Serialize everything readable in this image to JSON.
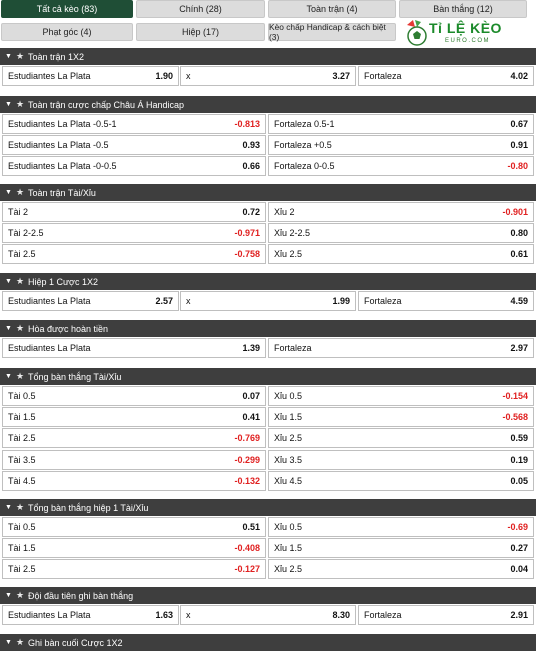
{
  "tabs": [
    {
      "label": "Tất cả kèo (83)",
      "active": true
    },
    {
      "label": "Chính (28)",
      "active": false
    },
    {
      "label": "Toàn trận (4)",
      "active": false
    },
    {
      "label": "Bàn thắng (12)",
      "active": false
    },
    {
      "label": "Phạt góc (4)",
      "active": false
    },
    {
      "label": "Hiệp (17)",
      "active": false
    },
    {
      "label": "Kèo chấp Handicap & cách biệt (3)",
      "active": false
    }
  ],
  "logo": {
    "brand": "Tỉ LỆ KÈO",
    "sub": "EURO.COM"
  },
  "colors": {
    "header_bg": "#3e3e3e",
    "active_tab": "#1f4e36",
    "negative": "#e02020"
  },
  "sections": [
    {
      "title": "Toàn trận 1X2",
      "cols": 3,
      "rows": [
        [
          {
            "label": "Estudiantes La Plata",
            "odd": "1.90"
          },
          {
            "label": "x",
            "odd": "3.27"
          },
          {
            "label": "Fortaleza",
            "odd": "4.02"
          }
        ]
      ]
    },
    {
      "title": "Toàn trận cược chấp Châu Á Handicap",
      "cols": 2,
      "rows": [
        [
          {
            "label": "Estudiantes La Plata -0.5-1",
            "odd": "-0.813"
          },
          {
            "label": "Fortaleza 0.5-1",
            "odd": "0.67"
          }
        ],
        [
          {
            "label": "Estudiantes La Plata -0.5",
            "odd": "0.93"
          },
          {
            "label": "Fortaleza +0.5",
            "odd": "0.91"
          }
        ],
        [
          {
            "label": "Estudiantes La Plata -0-0.5",
            "odd": "0.66"
          },
          {
            "label": "Fortaleza 0-0.5",
            "odd": "-0.80"
          }
        ]
      ]
    },
    {
      "title": "Toàn trận Tài/Xỉu",
      "cols": 2,
      "rows": [
        [
          {
            "label": "Tài 2",
            "odd": "0.72"
          },
          {
            "label": "Xỉu 2",
            "odd": "-0.901"
          }
        ],
        [
          {
            "label": "Tài 2-2.5",
            "odd": "-0.971"
          },
          {
            "label": "Xỉu 2-2.5",
            "odd": "0.80"
          }
        ],
        [
          {
            "label": "Tài 2.5",
            "odd": "-0.758"
          },
          {
            "label": "Xỉu 2.5",
            "odd": "0.61"
          }
        ]
      ]
    },
    {
      "title": "Hiệp 1 Cược 1X2",
      "cols": 3,
      "rows": [
        [
          {
            "label": "Estudiantes La Plata",
            "odd": "2.57"
          },
          {
            "label": "x",
            "odd": "1.99"
          },
          {
            "label": "Fortaleza",
            "odd": "4.59"
          }
        ]
      ]
    },
    {
      "title": "Hòa được hoàn tiền",
      "cols": 2,
      "rows": [
        [
          {
            "label": "Estudiantes La Plata",
            "odd": "1.39"
          },
          {
            "label": "Fortaleza",
            "odd": "2.97"
          }
        ]
      ]
    },
    {
      "title": "Tổng bàn thắng Tài/Xỉu",
      "cols": 2,
      "rows": [
        [
          {
            "label": "Tài 0.5",
            "odd": "0.07"
          },
          {
            "label": "Xỉu 0.5",
            "odd": "-0.154"
          }
        ],
        [
          {
            "label": "Tài 1.5",
            "odd": "0.41"
          },
          {
            "label": "Xỉu 1.5",
            "odd": "-0.568"
          }
        ],
        [
          {
            "label": "Tài 2.5",
            "odd": "-0.769"
          },
          {
            "label": "Xỉu 2.5",
            "odd": "0.59"
          }
        ],
        [
          {
            "label": "Tài 3.5",
            "odd": "-0.299"
          },
          {
            "label": "Xỉu 3.5",
            "odd": "0.19"
          }
        ],
        [
          {
            "label": "Tài 4.5",
            "odd": "-0.132"
          },
          {
            "label": "Xỉu 4.5",
            "odd": "0.05"
          }
        ]
      ]
    },
    {
      "title": "Tổng bàn thắng hiệp 1 Tài/Xỉu",
      "cols": 2,
      "rows": [
        [
          {
            "label": "Tài 0.5",
            "odd": "0.51"
          },
          {
            "label": "Xỉu 0.5",
            "odd": "-0.69"
          }
        ],
        [
          {
            "label": "Tài 1.5",
            "odd": "-0.408"
          },
          {
            "label": "Xỉu 1.5",
            "odd": "0.27"
          }
        ],
        [
          {
            "label": "Tài 2.5",
            "odd": "-0.127"
          },
          {
            "label": "Xỉu 2.5",
            "odd": "0.04"
          }
        ]
      ]
    },
    {
      "title": "Đội đầu tiên ghi bàn thắng",
      "cols": 3,
      "rows": [
        [
          {
            "label": "Estudiantes La Plata",
            "odd": "1.63"
          },
          {
            "label": "x",
            "odd": "8.30"
          },
          {
            "label": "Fortaleza",
            "odd": "2.91"
          }
        ]
      ]
    },
    {
      "title": "Ghi bàn cuối Cược 1X2",
      "cols": 3,
      "rows": []
    }
  ]
}
